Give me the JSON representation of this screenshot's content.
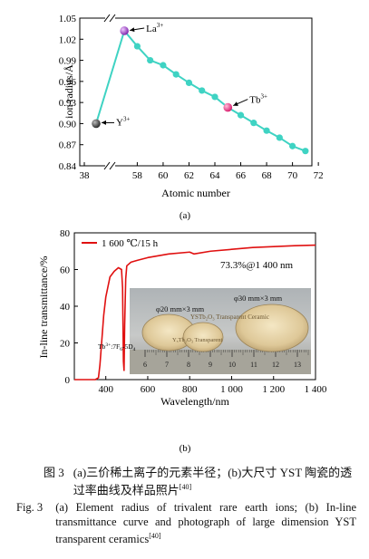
{
  "chart_data": [
    {
      "type": "line",
      "panel_label": "(a)",
      "xlabel": "Atomic number",
      "ylabel": "ion radius/Å",
      "xlim": [
        38,
        72
      ],
      "ylim": [
        0.84,
        1.05
      ],
      "x_ticks": [
        "38",
        "58",
        "60",
        "62",
        "64",
        "66",
        "68",
        "70",
        "72"
      ],
      "y_ticks": [
        "0.84",
        "0.87",
        "0.90",
        "0.93",
        "0.96",
        "0.99",
        "1.02",
        "1.05"
      ],
      "axis_break": true,
      "series": [
        {
          "color": "#3fd3c3",
          "x": [
            39,
            57,
            58,
            59,
            60,
            61,
            62,
            63,
            64,
            65,
            66,
            67,
            68,
            69,
            70,
            71
          ],
          "y": [
            0.9,
            1.032,
            1.01,
            0.99,
            0.983,
            0.97,
            0.958,
            0.947,
            0.938,
            0.923,
            0.912,
            0.901,
            0.89,
            0.88,
            0.868,
            0.861
          ]
        }
      ],
      "annotations": [
        {
          "label": "Y",
          "sup": "3+",
          "x": 39,
          "y": 0.9,
          "color": "#555555"
        },
        {
          "label": "La",
          "sup": "3+",
          "x": 57,
          "y": 1.032,
          "color": "#9933cc"
        },
        {
          "label": "Tb",
          "sup": "3+",
          "x": 65,
          "y": 0.923,
          "color": "#ee2277"
        }
      ]
    },
    {
      "type": "line",
      "panel_label": "(b)",
      "xlabel": "Wavelength/nm",
      "ylabel": "In-line transmittance/%",
      "xlim": [
        250,
        1400
      ],
      "ylim": [
        0,
        80
      ],
      "x_ticks": [
        400,
        600,
        800,
        1000,
        1200,
        1400
      ],
      "x_tick_labels": [
        "400",
        "600",
        "800",
        "1 000",
        "1 200",
        "1 400"
      ],
      "y_ticks": [
        0,
        20,
        40,
        60,
        80
      ],
      "legend": "1 600 ℃/15 h",
      "annotation_main": "73.3%@1 400 nm",
      "annotation_tb": "Tb",
      "annotation_tb_sup": "3+",
      "annotation_tb_rest": ":7F",
      "annotation_tb_sub1": "6",
      "annotation_tb_mid": "-5D",
      "annotation_tb_sub2": "4",
      "series": [
        {
          "name": "1 600 ℃/15 h",
          "color": "#e01010",
          "x": [
            250,
            350,
            365,
            372,
            380,
            390,
            400,
            420,
            440,
            460,
            475,
            480,
            484,
            487,
            490,
            495,
            500,
            520,
            550,
            600,
            650,
            700,
            800,
            820,
            900,
            1000,
            1100,
            1200,
            1300,
            1400
          ],
          "y": [
            0,
            0,
            1,
            8,
            20,
            35,
            45,
            56,
            59,
            61,
            60,
            50,
            10,
            5,
            30,
            55,
            62,
            64,
            65,
            66.5,
            67.5,
            68.5,
            69.5,
            68.5,
            70,
            71,
            72,
            72.5,
            73,
            73.3
          ]
        }
      ],
      "photo": {
        "label_left": "φ20 mm×3 mm",
        "label_right": "φ30 mm×3 mm",
        "disc_text_1": "YSTb₂O₃ Transparent Ceramic",
        "disc_text_2": "YₓTb₂O₃ Transparent",
        "ruler_numbers": [
          "6",
          "7",
          "8",
          "9",
          "10",
          "11",
          "12",
          "13"
        ]
      }
    }
  ],
  "captions": {
    "cn_label": "图 3",
    "cn_text": "(a)三价稀土离子的元素半径；(b)大尺寸 YST 陶瓷的透过率曲线及样品照片",
    "cn_ref": "[40]",
    "en_label": "Fig. 3",
    "en_text": "(a) Element radius of trivalent rare earth ions; (b) In-line transmittance curve and photograph of large dimension YST transparent ceramics",
    "en_ref": "[40]"
  }
}
